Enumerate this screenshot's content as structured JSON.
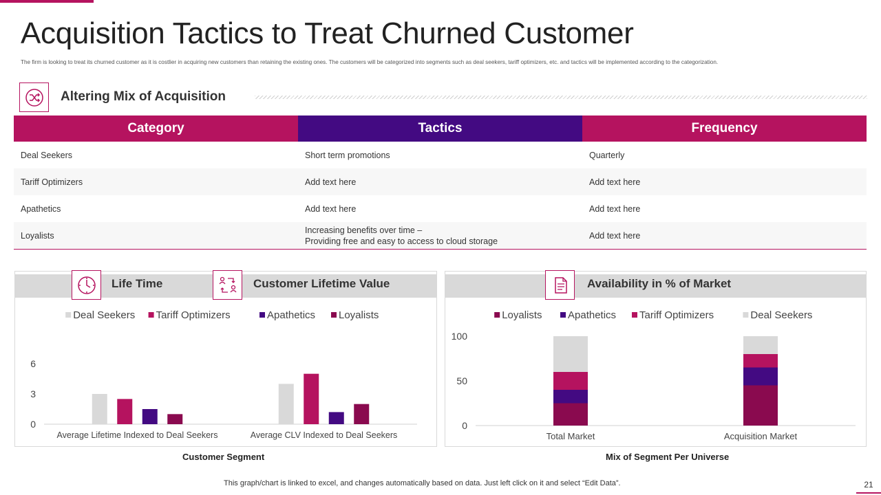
{
  "page": {
    "title": "Acquisition Tactics to Treat Churned Customer",
    "subtitle": "The firm is looking to treat its churned customer as it is costlier in acquiring new customers than retaining the existing ones. The customers will be categorized into segments such as deal seekers, tariff optimizers, etc. and tactics will be implemented according to the categorization.",
    "footnote": "This graph/chart is linked to excel, and changes automatically based on data. Just left click on it and select “Edit Data”.",
    "page_number": "21"
  },
  "colors": {
    "magenta": "#b5135f",
    "purple": "#430a82",
    "maroon": "#8a0a4f",
    "light_gray": "#d9d9d9"
  },
  "section": {
    "title": "Altering Mix of Acquisition",
    "icon": "shuffle-arrows-icon"
  },
  "table": {
    "headers": [
      "Category",
      "Tactics",
      "Frequency"
    ],
    "rows": [
      [
        "Deal Seekers",
        "Short term promotions",
        "Quarterly"
      ],
      [
        "Tariff Optimizers",
        "Add text here",
        "Add text here"
      ],
      [
        "Apathetics",
        "Add text here",
        "Add text here"
      ],
      [
        "Loyalists",
        "Increasing benefits over time –",
        "Add text here"
      ]
    ],
    "loyalists_tactic_line2": "Providing free and easy to access to cloud storage"
  },
  "left_panel": {
    "title1": "Life Time",
    "icon1": "clock-icon",
    "title2": "Customer Lifetime Value",
    "icon2": "exchange-people-icon",
    "caption": "Customer Segment"
  },
  "right_panel": {
    "title": "Availability in % of Market",
    "icon": "document-icon",
    "caption": "Mix of Segment Per Universe"
  },
  "chart_data": [
    {
      "type": "bar",
      "categories": [
        "Average Lifetime Indexed to Deal Seekers",
        "Average CLV Indexed to Deal Seekers"
      ],
      "series": [
        {
          "name": "Deal Seekers",
          "color": "#d9d9d9",
          "values": [
            3,
            4
          ]
        },
        {
          "name": "Tariff Optimizers",
          "color": "#b5135f",
          "values": [
            2.5,
            5
          ]
        },
        {
          "name": "Apathetics",
          "color": "#430a82",
          "values": [
            1.5,
            1.2
          ]
        },
        {
          "name": "Loyalists",
          "color": "#8a0a4f",
          "values": [
            1,
            2
          ]
        }
      ],
      "yticks": [
        0,
        3,
        6
      ],
      "ylim": [
        0,
        6
      ],
      "grid": false,
      "legend": "top"
    },
    {
      "type": "bar",
      "stacked": true,
      "categories": [
        "Total Market",
        "Acquisition Market"
      ],
      "series": [
        {
          "name": "Loyalists",
          "color": "#8a0a4f",
          "values": [
            25,
            45
          ]
        },
        {
          "name": "Apathetics",
          "color": "#430a82",
          "values": [
            15,
            20
          ]
        },
        {
          "name": "Tariff Optimizers",
          "color": "#b5135f",
          "values": [
            20,
            15
          ]
        },
        {
          "name": "Deal Seekers",
          "color": "#d9d9d9",
          "values": [
            40,
            20
          ]
        }
      ],
      "yticks": [
        0,
        50,
        100
      ],
      "ylim": [
        0,
        100
      ],
      "grid": false,
      "legend": "top"
    }
  ]
}
